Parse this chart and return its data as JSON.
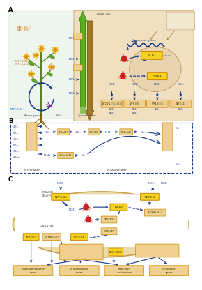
{
  "bg_color": "#ffffff",
  "colors": {
    "blue_arrow": "#1a3a8a",
    "blue_text": "#1a3a8a",
    "tan_bg": "#e8d5b0",
    "tan_bg2": "#f0e0c0",
    "orange_box": "#e8a040",
    "yellow_box": "#f0c830",
    "red_dot": "#cc2020",
    "green_arrow": "#50a020",
    "brown_arrow": "#a07020",
    "dashed_border": "#1a3a8a",
    "nucleus_fill": "#e8d0a8",
    "plastid_fill": "#f0e8d0",
    "outer_membrane": "#d4a84b"
  }
}
